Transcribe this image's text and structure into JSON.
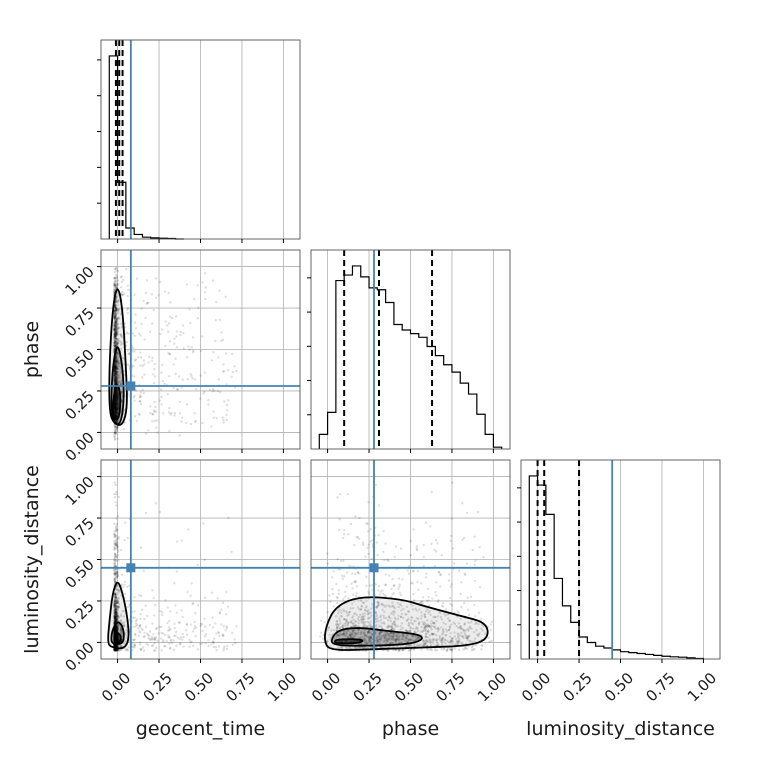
{
  "chart_data": {
    "type": "corner",
    "parameters": [
      "geocent_time",
      "phase",
      "luminosity_distance"
    ],
    "axis_range": [
      -0.1,
      1.1
    ],
    "tick_labels": [
      "0.00",
      "0.25",
      "0.50",
      "0.75",
      "1.00"
    ],
    "ticks": [
      0,
      0.25,
      0.5,
      0.75,
      1.0
    ],
    "grid": true,
    "colors": {
      "line": "#000000",
      "truth": "#4682b4",
      "grid": "#b0b0b0",
      "scatter": "#000000"
    },
    "truth_values": {
      "geocent_time": 0.08,
      "phase": 0.28,
      "luminosity_distance": 0.45
    },
    "histograms": [
      {
        "parameter": "geocent_time",
        "quantiles": [
          -0.01,
          0.01,
          0.03
        ],
        "bin_edges": [
          -0.05,
          0.0,
          0.05,
          0.1,
          0.15,
          0.2,
          0.25,
          0.3,
          0.35,
          0.4
        ],
        "heights": [
          1.0,
          0.31,
          0.06,
          0.025,
          0.01,
          0.006,
          0.004,
          0.003,
          0.0
        ]
      },
      {
        "parameter": "phase",
        "quantiles": [
          0.1,
          0.31,
          0.63
        ],
        "bin_edges": [
          -0.05,
          0.0,
          0.05,
          0.1,
          0.15,
          0.2,
          0.25,
          0.3,
          0.35,
          0.4,
          0.45,
          0.5,
          0.55,
          0.6,
          0.65,
          0.7,
          0.75,
          0.8,
          0.85,
          0.9,
          0.95,
          1.0,
          1.05
        ],
        "heights": [
          0.08,
          0.2,
          0.92,
          0.95,
          1.0,
          0.94,
          0.88,
          0.87,
          0.8,
          0.68,
          0.65,
          0.63,
          0.61,
          0.56,
          0.51,
          0.46,
          0.42,
          0.36,
          0.3,
          0.19,
          0.08,
          0.01
        ]
      },
      {
        "parameter": "luminosity_distance",
        "quantiles": [
          0.0,
          0.04,
          0.25
        ],
        "bin_edges": [
          -0.05,
          0.0,
          0.05,
          0.1,
          0.15,
          0.2,
          0.25,
          0.3,
          0.35,
          0.4,
          0.45,
          0.5,
          0.55,
          0.6,
          0.65,
          0.7,
          0.75,
          0.8,
          0.85,
          0.9,
          0.95,
          1.0
        ],
        "heights": [
          1.0,
          0.95,
          0.79,
          0.44,
          0.29,
          0.2,
          0.12,
          0.09,
          0.07,
          0.06,
          0.05,
          0.04,
          0.035,
          0.03,
          0.025,
          0.02,
          0.015,
          0.012,
          0.01,
          0.006,
          0.003
        ]
      }
    ],
    "pairs": [
      {
        "x": "geocent_time",
        "y": "phase",
        "contours": [
          [
            [
              -0.02,
              0.05
            ],
            [
              0.03,
              0.04
            ],
            [
              0.06,
              0.15
            ],
            [
              0.05,
              0.4
            ],
            [
              0.03,
              0.75
            ],
            [
              0.0,
              0.9
            ],
            [
              -0.03,
              0.75
            ],
            [
              -0.05,
              0.4
            ],
            [
              -0.05,
              0.12
            ]
          ],
          [
            [
              -0.02,
              0.05
            ],
            [
              0.02,
              0.05
            ],
            [
              0.04,
              0.2
            ],
            [
              0.03,
              0.4
            ],
            [
              0.0,
              0.55
            ],
            [
              -0.03,
              0.4
            ],
            [
              -0.04,
              0.15
            ]
          ],
          [
            [
              -0.02,
              0.08
            ],
            [
              0.01,
              0.08
            ],
            [
              0.02,
              0.22
            ],
            [
              0.0,
              0.3
            ],
            [
              -0.02,
              0.25
            ],
            [
              -0.03,
              0.12
            ]
          ]
        ]
      },
      {
        "x": "geocent_time",
        "y": "luminosity_distance",
        "contours": [
          [
            [
              -0.04,
              -0.03
            ],
            [
              0.04,
              -0.04
            ],
            [
              0.07,
              0.02
            ],
            [
              0.06,
              0.15
            ],
            [
              0.03,
              0.3
            ],
            [
              0.0,
              0.38
            ],
            [
              -0.03,
              0.3
            ],
            [
              -0.05,
              0.12
            ],
            [
              -0.06,
              0.0
            ]
          ],
          [
            [
              -0.03,
              -0.01
            ],
            [
              0.03,
              -0.01
            ],
            [
              0.04,
              0.04
            ],
            [
              0.03,
              0.1
            ],
            [
              0.0,
              0.13
            ],
            [
              -0.03,
              0.08
            ],
            [
              -0.04,
              0.02
            ]
          ],
          [
            [
              -0.02,
              0.0
            ],
            [
              0.02,
              0.0
            ],
            [
              0.02,
              0.04
            ],
            [
              0.0,
              0.06
            ],
            [
              -0.02,
              0.04
            ]
          ]
        ]
      },
      {
        "x": "phase",
        "y": "luminosity_distance",
        "contours": [
          [
            [
              -0.02,
              0.0
            ],
            [
              0.02,
              -0.05
            ],
            [
              0.3,
              -0.04
            ],
            [
              0.6,
              -0.03
            ],
            [
              0.85,
              -0.02
            ],
            [
              0.97,
              0.02
            ],
            [
              0.96,
              0.12
            ],
            [
              0.8,
              0.16
            ],
            [
              0.58,
              0.22
            ],
            [
              0.45,
              0.26
            ],
            [
              0.2,
              0.28
            ],
            [
              0.05,
              0.22
            ],
            [
              -0.01,
              0.1
            ]
          ],
          [
            [
              0.02,
              -0.02
            ],
            [
              0.3,
              -0.02
            ],
            [
              0.5,
              -0.01
            ],
            [
              0.58,
              0.02
            ],
            [
              0.55,
              0.05
            ],
            [
              0.35,
              0.07
            ],
            [
              0.2,
              0.09
            ],
            [
              0.08,
              0.08
            ],
            [
              0.03,
              0.04
            ]
          ],
          [
            [
              0.05,
              -0.005
            ],
            [
              0.18,
              -0.005
            ],
            [
              0.22,
              0.01
            ],
            [
              0.18,
              0.02
            ],
            [
              0.08,
              0.02
            ],
            [
              0.04,
              0.01
            ]
          ]
        ]
      }
    ]
  }
}
